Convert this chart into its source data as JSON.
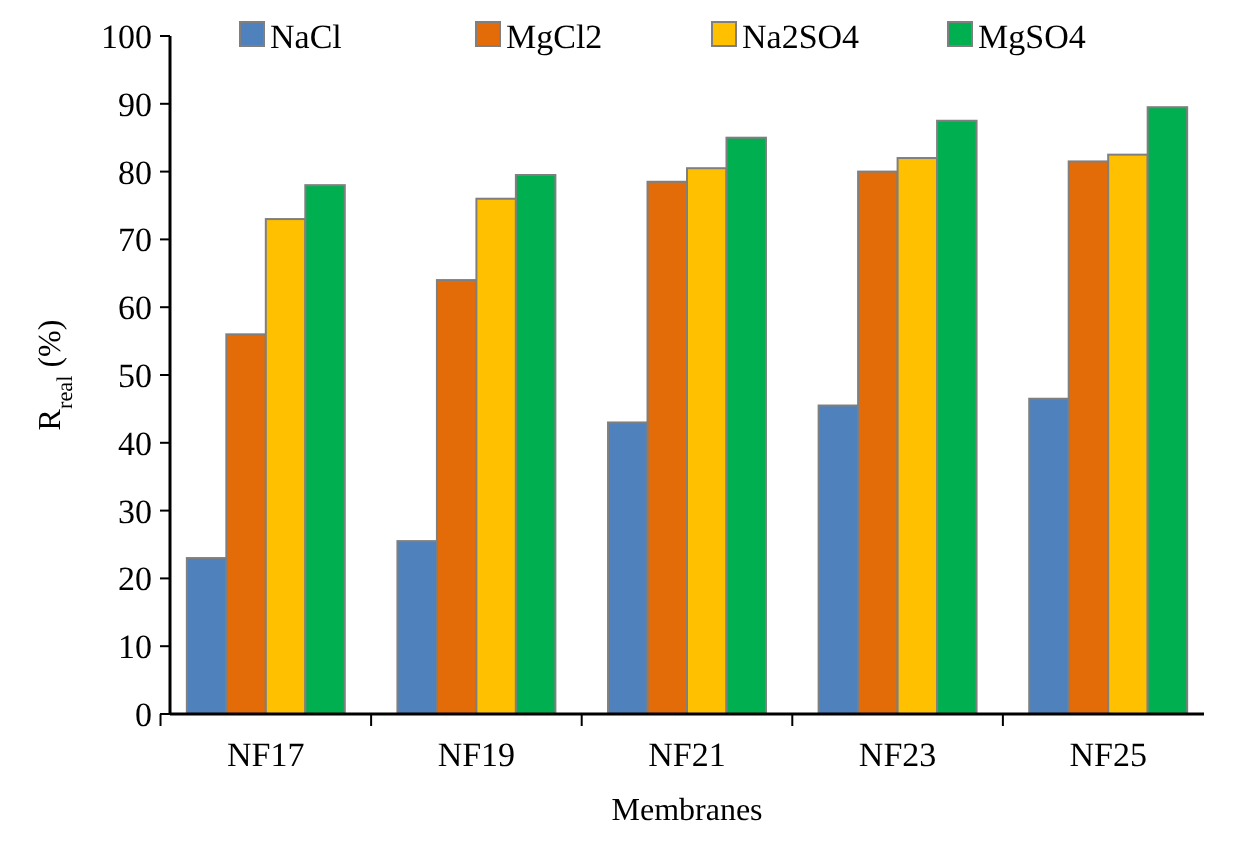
{
  "chart_data": {
    "type": "bar",
    "xlabel": "Membranes",
    "ylabel": "R$_{real}$ (%)",
    "categories": [
      "NF17",
      "NF19",
      "NF21",
      "NF23",
      "NF25"
    ],
    "series": [
      {
        "name": "NaCl",
        "color": "#4f81bd",
        "values": [
          23,
          25.5,
          43,
          45.5,
          46.5
        ]
      },
      {
        "name": "MgCl2",
        "color": "#e36c09",
        "values": [
          56,
          64,
          78.5,
          80,
          81.5
        ]
      },
      {
        "name": "Na2SO4",
        "color": "#ffc000",
        "values": [
          73,
          76,
          80.5,
          82,
          82.5
        ]
      },
      {
        "name": "MgSO4",
        "color": "#00b050",
        "values": [
          78,
          79.5,
          85,
          87.5,
          89.5
        ]
      }
    ],
    "ylim": [
      0,
      100
    ],
    "yticks": [
      0,
      10,
      20,
      30,
      40,
      50,
      60,
      70,
      80,
      90,
      100
    ],
    "grid": false,
    "legend": "top"
  }
}
